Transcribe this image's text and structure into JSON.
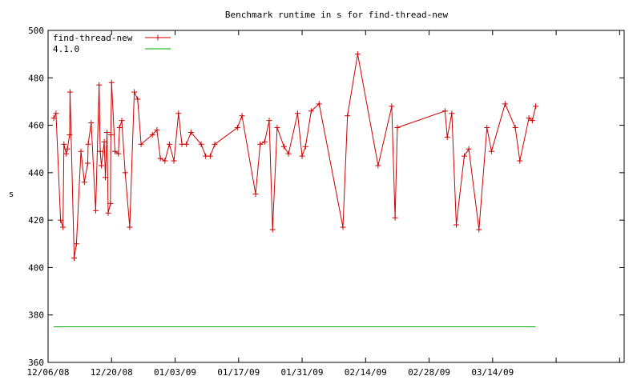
{
  "chart_data": {
    "type": "line",
    "title": "Benchmark runtime in s for find-thread-new",
    "xlabel": "",
    "ylabel": "s",
    "x_type": "date",
    "xlim": [
      "2008-12-06",
      "2009-04-12"
    ],
    "ylim": [
      360,
      500
    ],
    "x_ticks": [
      {
        "date": "2008-12-06",
        "label": "12/06/08"
      },
      {
        "date": "2008-12-20",
        "label": "12/20/08"
      },
      {
        "date": "2009-01-03",
        "label": "01/03/09"
      },
      {
        "date": "2009-01-17",
        "label": "01/17/09"
      },
      {
        "date": "2009-01-31",
        "label": "01/31/09"
      },
      {
        "date": "2009-02-14",
        "label": "02/14/09"
      },
      {
        "date": "2009-02-28",
        "label": "02/28/09"
      },
      {
        "date": "2009-03-14",
        "label": "03/14/09"
      },
      {
        "date": "2009-03-28",
        "label": ""
      },
      {
        "date": "2009-04-11",
        "label": ""
      }
    ],
    "y_ticks": [
      360,
      380,
      400,
      420,
      440,
      460,
      480,
      500
    ],
    "grid": false,
    "legend": "top-left",
    "series": [
      {
        "name": "find-thread-new",
        "color": "#cc0000",
        "marker": "plus",
        "points": [
          [
            "2008-12-07 06:00",
            463
          ],
          [
            "2008-12-07 18:00",
            465
          ],
          [
            "2008-12-08 18:00",
            420
          ],
          [
            "2008-12-09 07:00",
            417
          ],
          [
            "2008-12-09 12:00",
            452
          ],
          [
            "2008-12-10 00:00",
            448
          ],
          [
            "2008-12-10 06:00",
            450
          ],
          [
            "2008-12-10 18:00",
            456
          ],
          [
            "2008-12-10 20:00",
            474
          ],
          [
            "2008-12-11 18:00",
            404
          ],
          [
            "2008-12-12 06:00",
            410
          ],
          [
            "2008-12-13 06:00",
            449
          ],
          [
            "2008-12-14 00:00",
            436
          ],
          [
            "2008-12-14 18:00",
            444
          ],
          [
            "2008-12-14 20:00",
            452
          ],
          [
            "2008-12-15 12:00",
            461
          ],
          [
            "2008-12-16 12:00",
            424
          ],
          [
            "2008-12-17 06:00",
            477
          ],
          [
            "2008-12-17 12:00",
            449
          ],
          [
            "2008-12-17 18:00",
            443
          ],
          [
            "2008-12-18 09:00",
            453
          ],
          [
            "2008-12-18 15:00",
            438
          ],
          [
            "2008-12-19 00:00",
            457
          ],
          [
            "2008-12-19 06:00",
            423
          ],
          [
            "2008-12-19 18:00",
            427
          ],
          [
            "2008-12-19 20:00",
            456
          ],
          [
            "2008-12-20 00:00",
            478
          ],
          [
            "2008-12-20 18:00",
            449
          ],
          [
            "2008-12-21 12:00",
            448
          ],
          [
            "2008-12-21 18:00",
            459
          ],
          [
            "2008-12-22 06:00",
            462
          ],
          [
            "2008-12-23 00:00",
            440
          ],
          [
            "2008-12-24 00:00",
            417
          ],
          [
            "2008-12-25 00:00",
            474
          ],
          [
            "2008-12-25 18:00",
            471
          ],
          [
            "2008-12-26 12:00",
            452
          ],
          [
            "2008-12-29 00:00",
            456
          ],
          [
            "2008-12-30 00:00",
            458
          ],
          [
            "2008-12-30 18:00",
            446
          ],
          [
            "2008-12-31 18:00",
            445
          ],
          [
            "2009-01-01 18:00",
            452
          ],
          [
            "2009-01-02 18:00",
            445
          ],
          [
            "2009-01-03 18:00",
            465
          ],
          [
            "2009-01-04 12:00",
            452
          ],
          [
            "2009-01-05 12:00",
            452
          ],
          [
            "2009-01-06 12:00",
            457
          ],
          [
            "2009-01-08 18:00",
            452
          ],
          [
            "2009-01-09 18:00",
            447
          ],
          [
            "2009-01-10 18:00",
            447
          ],
          [
            "2009-01-11 18:00",
            452
          ],
          [
            "2009-01-16 18:00",
            459
          ],
          [
            "2009-01-17 18:00",
            464
          ],
          [
            "2009-01-20 18:00",
            431
          ],
          [
            "2009-01-21 18:00",
            452
          ],
          [
            "2009-01-22 18:00",
            453
          ],
          [
            "2009-01-23 18:00",
            462
          ],
          [
            "2009-01-24 12:00",
            416
          ],
          [
            "2009-01-25 12:00",
            459
          ],
          [
            "2009-01-27 00:00",
            451
          ],
          [
            "2009-01-28 00:00",
            448
          ],
          [
            "2009-01-30 00:00",
            465
          ],
          [
            "2009-01-31 00:00",
            447
          ],
          [
            "2009-01-31 18:00",
            451
          ],
          [
            "2009-02-02 00:00",
            466
          ],
          [
            "2009-02-03 18:00",
            469
          ],
          [
            "2009-02-09 00:00",
            417
          ],
          [
            "2009-02-10 00:00",
            464
          ],
          [
            "2009-02-12 06:00",
            490
          ],
          [
            "2009-02-16 18:00",
            443
          ],
          [
            "2009-02-19 18:00",
            468
          ],
          [
            "2009-02-20 12:00",
            421
          ],
          [
            "2009-02-21 00:00",
            459
          ],
          [
            "2009-03-03 12:00",
            466
          ],
          [
            "2009-03-04 00:00",
            455
          ],
          [
            "2009-03-05 00:00",
            465
          ],
          [
            "2009-03-06 00:00",
            418
          ],
          [
            "2009-03-07 18:00",
            447
          ],
          [
            "2009-03-08 18:00",
            450
          ],
          [
            "2009-03-11 00:00",
            416
          ],
          [
            "2009-03-12 18:00",
            459
          ],
          [
            "2009-03-13 18:00",
            449
          ],
          [
            "2009-03-16 18:00",
            469
          ],
          [
            "2009-03-19 00:00",
            459
          ],
          [
            "2009-03-20 00:00",
            445
          ],
          [
            "2009-03-22 00:00",
            463
          ],
          [
            "2009-03-22 18:00",
            462
          ],
          [
            "2009-03-23 12:00",
            468
          ]
        ]
      },
      {
        "name": "4.1.0",
        "color": "#00aa00",
        "marker": "none",
        "points": [
          [
            "2008-12-07 06:00",
            375
          ],
          [
            "2009-03-23 12:00",
            375
          ]
        ]
      }
    ]
  }
}
